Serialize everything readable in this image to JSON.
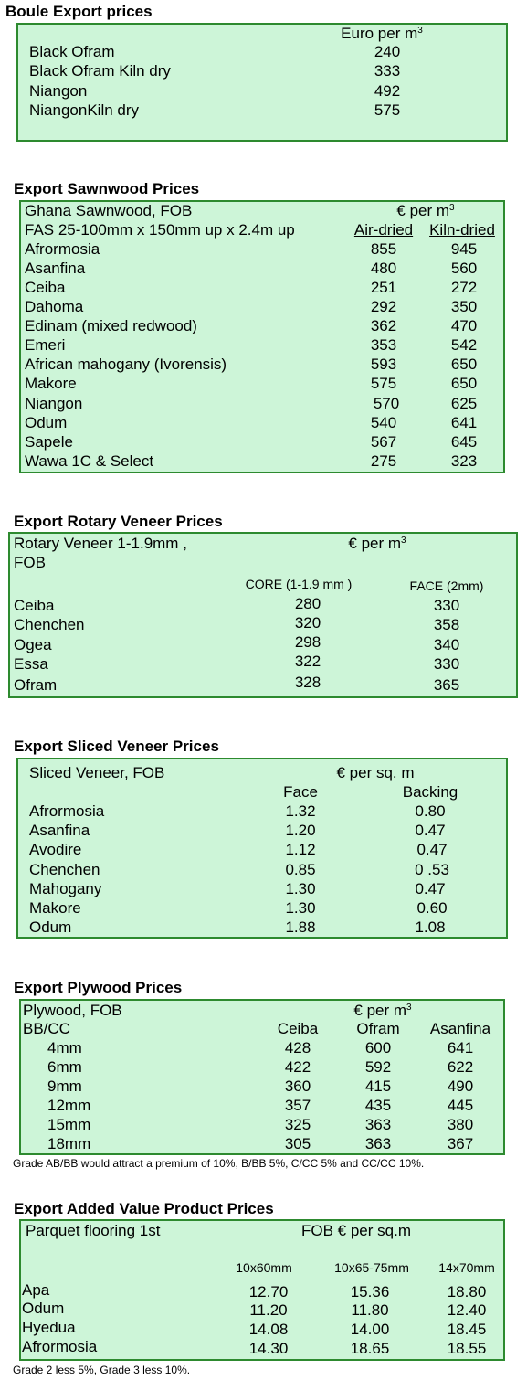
{
  "boule": {
    "title": "Boule Export prices",
    "unit_prefix": "Euro per m",
    "unit_sup": "3",
    "rows": [
      {
        "name": "Black Ofram",
        "price": "240"
      },
      {
        "name": "Black Ofram  Kiln dry",
        "price": "333"
      },
      {
        "name": "Niangon",
        "price": "492"
      },
      {
        "name": "NiangonKiln dry",
        "price": "575"
      }
    ]
  },
  "sawnwood": {
    "title": "Export Sawnwood Prices",
    "line1": "Ghana Sawnwood, FOB",
    "line2": "FAS 25-100mm x 150mm up x 2.4m up",
    "unit_prefix": "€ per m",
    "unit_sup": "3",
    "col1": "Air-dried",
    "col2": "Kiln-dried",
    "rows": [
      {
        "name": "Afrormosia",
        "air": "855",
        "kiln": "945"
      },
      {
        "name": "Asanfina",
        "air": "480",
        "kiln": "560"
      },
      {
        "name": "Ceiba",
        "air": "251",
        "kiln": "272"
      },
      {
        "name": "Dahoma",
        "air": "292",
        "kiln": "350"
      },
      {
        "name": "Edinam (mixed redwood)",
        "air": "362",
        "kiln": "470"
      },
      {
        "name": "Emeri",
        "air": "353",
        "kiln": "542"
      },
      {
        "name": "African mahogany (Ivorensis)",
        "air": "593",
        "kiln": "650"
      },
      {
        "name": "Makore",
        "air": "575",
        "kiln": "650"
      },
      {
        "name": "Niangon",
        "air": "570",
        "kiln": "625"
      },
      {
        "name": "Odum",
        "air": "540",
        "kiln": "641"
      },
      {
        "name": "Sapele",
        "air": "567",
        "kiln": "645"
      },
      {
        "name": "Wawa 1C & Select",
        "air": "275",
        "kiln": "323"
      }
    ]
  },
  "rotary": {
    "title": "Export Rotary Veneer Prices",
    "line1": "Rotary Veneer 1-1.9mm ,",
    "line2": "FOB",
    "unit_prefix": "€  per m",
    "unit_sup": "3",
    "col1": "CORE (1-1.9 mm )",
    "col2": "FACE (2mm)",
    "rows": [
      {
        "name": "Ceiba",
        "core": "280",
        "face": "330"
      },
      {
        "name": "Chenchen",
        "core": "320",
        "face": "358"
      },
      {
        "name": "Ogea",
        "core": "298",
        "face": "340"
      },
      {
        "name": "Essa",
        "core": "322",
        "face": "330"
      },
      {
        "name": "Ofram",
        "core": "328",
        "face": "365"
      }
    ]
  },
  "sliced": {
    "title": "Export Sliced Veneer Prices",
    "line1": "Sliced Veneer, FOB",
    "unit": "€ per sq. m",
    "col1": "Face",
    "col2": "Backing",
    "rows": [
      {
        "name": "Afrormosia",
        "face": "1.32",
        "backing": "0.80"
      },
      {
        "name": "Asanfina",
        "face": "1.20",
        "backing": "0.47"
      },
      {
        "name": "Avodire",
        "face": "1.12",
        "backing": "0.47"
      },
      {
        "name": "Chenchen",
        "face": "0.85",
        "backing": "0 .53"
      },
      {
        "name": "Mahogany",
        "face": "1.30",
        "backing": "0.47"
      },
      {
        "name": "Makore",
        "face": "1.30",
        "backing": "0.60"
      },
      {
        "name": "Odum",
        "face": "1.88",
        "backing": "1.08"
      }
    ]
  },
  "plywood": {
    "title": "Export Plywood Prices",
    "line1": "Plywood, FOB",
    "line2": "BB/CC",
    "unit_prefix": "€ per m",
    "unit_sup": "3",
    "col1": "Ceiba",
    "col2": "Ofram",
    "col3": "Asanfina",
    "rows": [
      {
        "name": "4mm",
        "ceiba": "428",
        "ofram": "600",
        "asanfina": "641"
      },
      {
        "name": "6mm",
        "ceiba": "422",
        "ofram": "592",
        "asanfina": "622"
      },
      {
        "name": "9mm",
        "ceiba": "360",
        "ofram": "415",
        "asanfina": "490"
      },
      {
        "name": "12mm",
        "ceiba": "357",
        "ofram": "435",
        "asanfina": "445"
      },
      {
        "name": "15mm",
        "ceiba": "325",
        "ofram": "363",
        "asanfina": "380"
      },
      {
        "name": "18mm",
        "ceiba": "305",
        "ofram": "363",
        "asanfina": "367"
      }
    ],
    "note": "Grade AB/BB would attract a premium of 10%, B/BB 5%, C/CC 5% and CC/CC 10%."
  },
  "parquet": {
    "title": "Export Added Value Product Prices",
    "line1": "Parquet flooring 1st",
    "unit": "FOB € per sq.m",
    "col1": "10x60mm",
    "col2": "10x65-75mm",
    "col3": "14x70mm",
    "rows": [
      {
        "name": "Apa",
        "a": "12.70",
        "b": "15.36",
        "c": "18.80"
      },
      {
        "name": "Odum",
        "a": "11.20",
        "b": "11.80",
        "c": "12.40"
      },
      {
        "name": "Hyedua",
        "a": "14.08",
        "b": "14.00",
        "c": "18.45"
      },
      {
        "name": "Afrormosia",
        "a": "14.30",
        "b": "18.65",
        "c": "18.55"
      }
    ],
    "note": "Grade 2 less 5%, Grade 3 less 10%."
  }
}
